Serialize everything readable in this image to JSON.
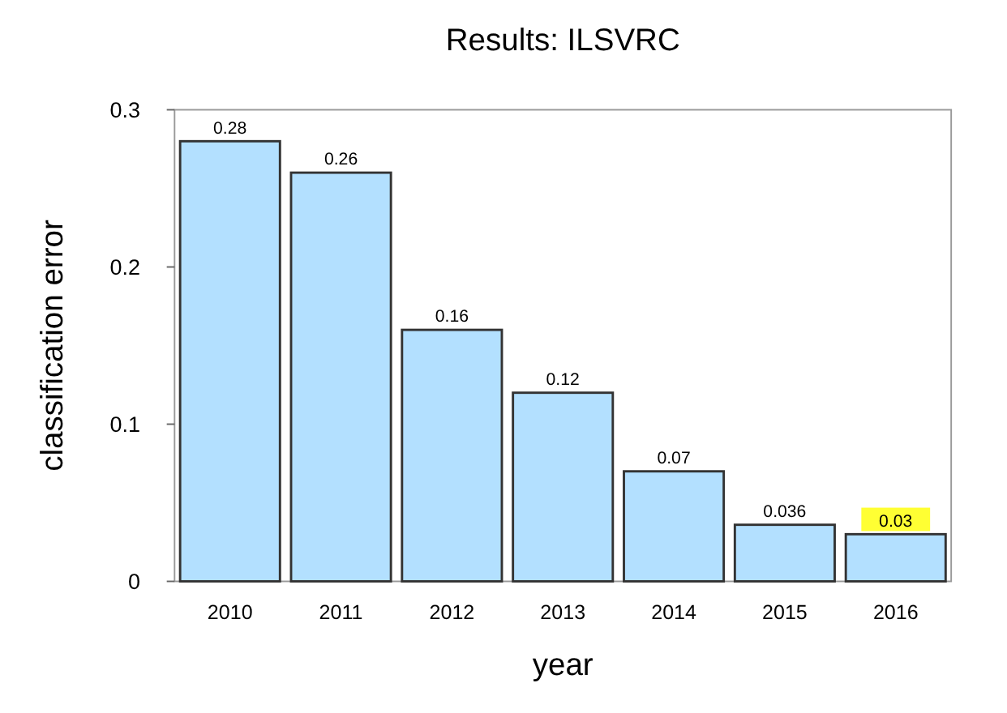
{
  "chart_data": {
    "type": "bar",
    "title": "Results: ILSVRC",
    "xlabel": "year",
    "ylabel": "classification error",
    "categories": [
      "2010",
      "2011",
      "2012",
      "2013",
      "2014",
      "2015",
      "2016"
    ],
    "values": [
      0.28,
      0.26,
      0.16,
      0.12,
      0.07,
      0.036,
      0.03
    ],
    "color": "#b3e0ff",
    "ylim": [
      0,
      0.3
    ],
    "yticks": [
      0,
      0.1,
      0.2,
      0.3
    ],
    "grid": false,
    "data_labels": true
  }
}
